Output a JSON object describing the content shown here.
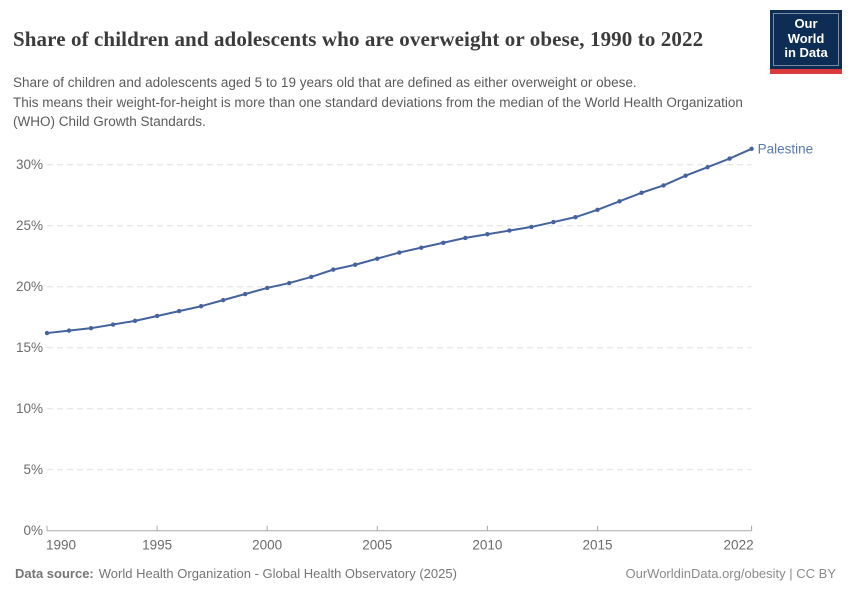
{
  "header": {
    "subtitle_lines": [
      "Share of children and adolescents aged 5 to 19 years old that are defined as either overweight or obese.",
      "This means their weight-for-height is more than one standard deviations from the median of the World Health Organization",
      "(WHO) Child Growth Standards."
    ],
    "logo": {
      "line1": "Our World",
      "line2": "in Data"
    }
  },
  "chart_data": {
    "type": "line",
    "title": "Share of children and adolescents who are overweight or obese, 1990 to 2022",
    "xlabel": "",
    "ylabel": "",
    "y_tick_suffix": "%",
    "xlim": [
      1990,
      2022
    ],
    "ylim": [
      0,
      32
    ],
    "x_ticks": [
      1990,
      1995,
      2000,
      2005,
      2010,
      2015,
      2022
    ],
    "y_ticks": [
      0,
      5,
      10,
      15,
      20,
      25,
      30
    ],
    "grid": "horizontal-dashed",
    "legend": "end-of-line-label",
    "series": [
      {
        "name": "Palestine",
        "color": "#44639e",
        "label_color": "#5879ad",
        "x": [
          1990,
          1991,
          1992,
          1993,
          1994,
          1995,
          1996,
          1997,
          1998,
          1999,
          2000,
          2001,
          2002,
          2003,
          2004,
          2005,
          2006,
          2007,
          2008,
          2009,
          2010,
          2011,
          2012,
          2013,
          2014,
          2015,
          2016,
          2017,
          2018,
          2019,
          2020,
          2021,
          2022
        ],
        "values": [
          16.2,
          16.4,
          16.6,
          16.9,
          17.2,
          17.6,
          18.0,
          18.4,
          18.9,
          19.4,
          19.9,
          20.3,
          20.8,
          21.4,
          21.8,
          22.3,
          22.8,
          23.2,
          23.6,
          24.0,
          24.3,
          24.6,
          24.9,
          25.3,
          25.7,
          26.3,
          27.0,
          27.7,
          28.3,
          29.1,
          29.8,
          30.5,
          31.3
        ]
      }
    ]
  },
  "footer": {
    "datasource_label": "Data source:",
    "datasource_value": "World Health Organization - Global Health Observatory (2025)",
    "credit": "OurWorldinData.org/obesity | CC BY"
  },
  "colors": {
    "line": "#44639e",
    "series_label": "#5879ad",
    "title_text": "#3b3b3b",
    "subtitle_text": "#5b5b5b",
    "axis_text": "#6b6b6b",
    "gridline": "#e0e0e0",
    "axis_line": "#a8a8a8",
    "logo_bg": "#0d2d55",
    "logo_stripe": "#d93a3c",
    "footer_text": "#757575"
  }
}
